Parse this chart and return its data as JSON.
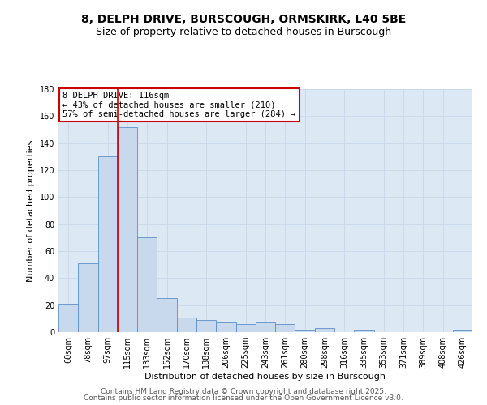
{
  "title_line1": "8, DELPH DRIVE, BURSCOUGH, ORMSKIRK, L40 5BE",
  "title_line2": "Size of property relative to detached houses in Burscough",
  "xlabel": "Distribution of detached houses by size in Burscough",
  "ylabel": "Number of detached properties",
  "categories": [
    "60sqm",
    "78sqm",
    "97sqm",
    "115sqm",
    "133sqm",
    "152sqm",
    "170sqm",
    "188sqm",
    "206sqm",
    "225sqm",
    "243sqm",
    "261sqm",
    "280sqm",
    "298sqm",
    "316sqm",
    "335sqm",
    "353sqm",
    "371sqm",
    "389sqm",
    "408sqm",
    "426sqm"
  ],
  "values": [
    21,
    51,
    130,
    152,
    70,
    25,
    11,
    9,
    7,
    6,
    7,
    6,
    1,
    3,
    0,
    1,
    0,
    0,
    0,
    0,
    1
  ],
  "bar_color": "#c9d9ed",
  "bar_edge_color": "#5b8fc9",
  "vline_x": 2.5,
  "vline_color": "#cc0000",
  "annotation_text": "8 DELPH DRIVE: 116sqm\n← 43% of detached houses are smaller (210)\n57% of semi-detached houses are larger (284) →",
  "annotation_box_color": "white",
  "annotation_box_edge_color": "#cc0000",
  "ylim": [
    0,
    180
  ],
  "yticks": [
    0,
    20,
    40,
    60,
    80,
    100,
    120,
    140,
    160,
    180
  ],
  "grid_color": "#c8d8e8",
  "bg_color": "#dce9f5",
  "footer_line1": "Contains HM Land Registry data © Crown copyright and database right 2025.",
  "footer_line2": "Contains public sector information licensed under the Open Government Licence v3.0.",
  "title_fontsize": 10,
  "subtitle_fontsize": 9,
  "axis_label_fontsize": 8,
  "tick_fontsize": 7,
  "annotation_fontsize": 7.5,
  "footer_fontsize": 6.5
}
